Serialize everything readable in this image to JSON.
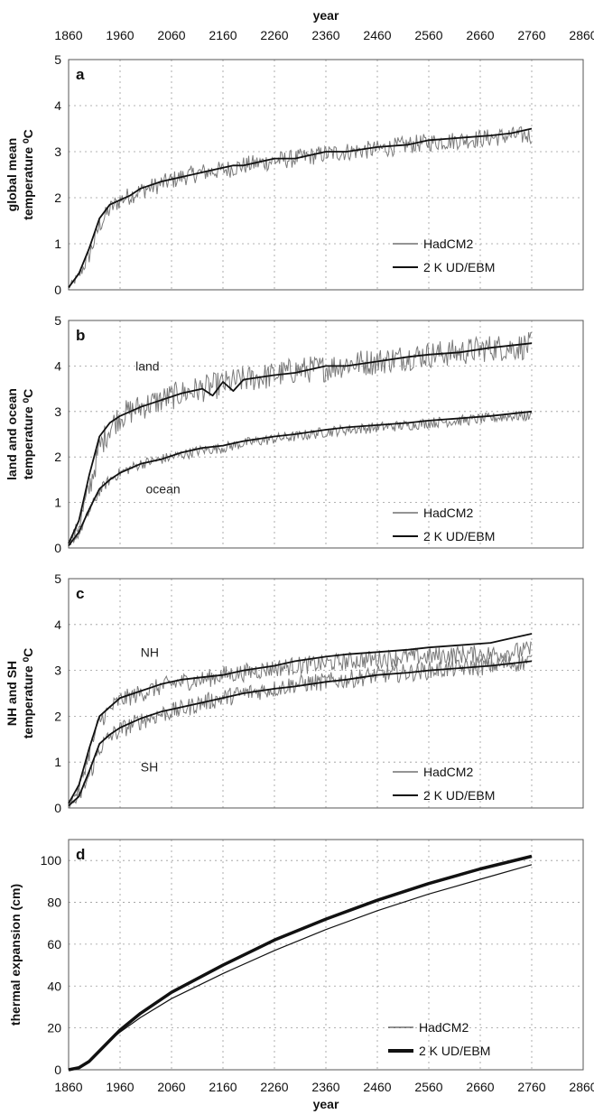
{
  "figure": {
    "top_axis_title": "year",
    "bottom_axis_title": "year"
  },
  "chart_data": [
    {
      "type": "line",
      "panel": "a",
      "xlabel": "year",
      "ylabel": [
        "global mean",
        "temperature ⁰C"
      ],
      "xlim": [
        1860,
        2860
      ],
      "ylim": [
        0,
        5
      ],
      "x_ticks": [
        1860,
        1960,
        2060,
        2160,
        2260,
        2360,
        2460,
        2560,
        2660,
        2760,
        2860
      ],
      "y_ticks": [
        0,
        1,
        2,
        3,
        4,
        5
      ],
      "grid": true,
      "legend_position": "bottom-right",
      "legend": [
        "HadCM2",
        "2 K UD/EBM"
      ],
      "annotations": [],
      "series": [
        {
          "name": "HadCM2",
          "noisy": true,
          "noise": 0.2,
          "x": [
            1860,
            1880,
            1900,
            1920,
            1940,
            1960,
            1980,
            2000,
            2040,
            2080,
            2120,
            2160,
            2200,
            2260,
            2300,
            2360,
            2400,
            2460,
            2520,
            2560,
            2620,
            2680,
            2720,
            2760
          ],
          "y": [
            0.05,
            0.3,
            0.75,
            1.4,
            1.75,
            1.95,
            2.05,
            2.15,
            2.3,
            2.45,
            2.55,
            2.6,
            2.7,
            2.8,
            2.85,
            2.95,
            3.0,
            3.05,
            3.15,
            3.2,
            3.25,
            3.3,
            3.35,
            3.35
          ]
        },
        {
          "name": "2 K UD/EBM",
          "noisy": false,
          "x": [
            1860,
            1880,
            1900,
            1920,
            1940,
            1960,
            1980,
            2000,
            2040,
            2080,
            2120,
            2160,
            2180,
            2200,
            2260,
            2300,
            2360,
            2400,
            2460,
            2520,
            2560,
            2620,
            2680,
            2720,
            2760
          ],
          "y": [
            0.05,
            0.35,
            0.9,
            1.55,
            1.85,
            1.95,
            2.05,
            2.2,
            2.35,
            2.45,
            2.55,
            2.65,
            2.7,
            2.7,
            2.85,
            2.85,
            3.0,
            3.0,
            3.1,
            3.15,
            3.25,
            3.3,
            3.35,
            3.4,
            3.5
          ]
        }
      ]
    },
    {
      "type": "line",
      "panel": "b",
      "xlabel": "year",
      "ylabel": [
        "land and ocean",
        "temperature ⁰C"
      ],
      "xlim": [
        1860,
        2860
      ],
      "ylim": [
        0,
        5
      ],
      "x_ticks": [
        1860,
        1960,
        2060,
        2160,
        2260,
        2360,
        2460,
        2560,
        2660,
        2760,
        2860
      ],
      "y_ticks": [
        0,
        1,
        2,
        3,
        4,
        5
      ],
      "grid": true,
      "legend_position": "bottom-right",
      "legend": [
        "HadCM2",
        "2 K UD/EBM"
      ],
      "annotations": [
        "land",
        "ocean"
      ],
      "series": [
        {
          "name": "HadCM2",
          "group": "land",
          "noisy": true,
          "noise": 0.3,
          "x": [
            1860,
            1880,
            1900,
            1920,
            1940,
            1960,
            2000,
            2040,
            2080,
            2120,
            2160,
            2200,
            2260,
            2300,
            2360,
            2400,
            2460,
            2520,
            2560,
            2620,
            2680,
            2720,
            2760
          ],
          "y": [
            0.1,
            0.5,
            1.3,
            2.2,
            2.65,
            2.9,
            3.1,
            3.25,
            3.4,
            3.5,
            3.6,
            3.7,
            3.8,
            3.9,
            3.95,
            4.05,
            4.1,
            4.2,
            4.25,
            4.3,
            4.4,
            4.4,
            4.45
          ]
        },
        {
          "name": "2 K UD/EBM",
          "group": "land",
          "noisy": false,
          "x": [
            1860,
            1880,
            1900,
            1920,
            1940,
            1960,
            2000,
            2040,
            2080,
            2120,
            2140,
            2160,
            2180,
            2200,
            2260,
            2300,
            2360,
            2400,
            2460,
            2520,
            2560,
            2620,
            2680,
            2720,
            2760
          ],
          "y": [
            0.1,
            0.6,
            1.6,
            2.45,
            2.75,
            2.9,
            3.1,
            3.25,
            3.4,
            3.5,
            3.35,
            3.65,
            3.45,
            3.7,
            3.8,
            3.85,
            4.0,
            4.0,
            4.1,
            4.2,
            4.25,
            4.3,
            4.4,
            4.45,
            4.5
          ]
        },
        {
          "name": "HadCM2",
          "group": "ocean",
          "noisy": true,
          "noise": 0.12,
          "x": [
            1860,
            1880,
            1900,
            1920,
            1940,
            1960,
            2000,
            2040,
            2080,
            2120,
            2160,
            2200,
            2260,
            2300,
            2360,
            2400,
            2460,
            2520,
            2560,
            2620,
            2680,
            2720,
            2760
          ],
          "y": [
            0.05,
            0.3,
            0.8,
            1.25,
            1.5,
            1.65,
            1.85,
            1.95,
            2.05,
            2.15,
            2.2,
            2.3,
            2.4,
            2.45,
            2.55,
            2.6,
            2.65,
            2.7,
            2.75,
            2.8,
            2.85,
            2.9,
            2.9
          ]
        },
        {
          "name": "2 K UD/EBM",
          "group": "ocean",
          "noisy": false,
          "x": [
            1860,
            1880,
            1900,
            1920,
            1940,
            1960,
            2000,
            2040,
            2080,
            2120,
            2160,
            2200,
            2260,
            2300,
            2360,
            2400,
            2460,
            2520,
            2560,
            2620,
            2680,
            2720,
            2760
          ],
          "y": [
            0.05,
            0.35,
            0.85,
            1.3,
            1.5,
            1.65,
            1.85,
            1.95,
            2.1,
            2.2,
            2.25,
            2.35,
            2.45,
            2.5,
            2.6,
            2.65,
            2.7,
            2.75,
            2.8,
            2.85,
            2.9,
            2.95,
            3.0
          ]
        }
      ]
    },
    {
      "type": "line",
      "panel": "c",
      "xlabel": "year",
      "ylabel": [
        "NH and SH",
        "temperature ⁰C"
      ],
      "xlim": [
        1860,
        2860
      ],
      "ylim": [
        0,
        5
      ],
      "x_ticks": [
        1860,
        1960,
        2060,
        2160,
        2260,
        2360,
        2460,
        2560,
        2660,
        2760,
        2860
      ],
      "y_ticks": [
        0,
        1,
        2,
        3,
        4,
        5
      ],
      "grid": true,
      "legend_position": "bottom-right",
      "legend": [
        "HadCM2",
        "2 K UD/EBM"
      ],
      "annotations": [
        "NH",
        "SH"
      ],
      "series": [
        {
          "name": "HadCM2",
          "group": "NH",
          "noisy": true,
          "noise": 0.2,
          "x": [
            1860,
            1880,
            1900,
            1920,
            1940,
            1960,
            2000,
            2040,
            2080,
            2120,
            2160,
            2200,
            2260,
            2300,
            2360,
            2400,
            2460,
            2520,
            2560,
            2620,
            2680,
            2720,
            2760
          ],
          "y": [
            0.1,
            0.4,
            1.2,
            1.9,
            2.15,
            2.35,
            2.5,
            2.65,
            2.75,
            2.8,
            2.9,
            2.95,
            3.05,
            3.1,
            3.15,
            3.2,
            3.25,
            3.3,
            3.3,
            3.35,
            3.35,
            3.4,
            3.45
          ]
        },
        {
          "name": "2 K UD/EBM",
          "group": "NH",
          "noisy": false,
          "x": [
            1860,
            1880,
            1900,
            1920,
            1940,
            1960,
            2000,
            2040,
            2080,
            2120,
            2160,
            2200,
            2260,
            2300,
            2360,
            2400,
            2460,
            2520,
            2560,
            2620,
            2680,
            2720,
            2760
          ],
          "y": [
            0.1,
            0.5,
            1.3,
            2.0,
            2.2,
            2.4,
            2.55,
            2.7,
            2.8,
            2.85,
            2.9,
            3.0,
            3.1,
            3.2,
            3.3,
            3.35,
            3.4,
            3.45,
            3.5,
            3.55,
            3.6,
            3.7,
            3.8
          ]
        },
        {
          "name": "HadCM2",
          "group": "SH",
          "noisy": true,
          "noise": 0.2,
          "x": [
            1860,
            1880,
            1900,
            1920,
            1940,
            1960,
            2000,
            2040,
            2080,
            2120,
            2160,
            2200,
            2260,
            2300,
            2360,
            2400,
            2460,
            2520,
            2560,
            2620,
            2680,
            2720,
            2760
          ],
          "y": [
            0.05,
            0.2,
            0.7,
            1.3,
            1.55,
            1.7,
            1.9,
            2.05,
            2.15,
            2.3,
            2.4,
            2.5,
            2.6,
            2.7,
            2.75,
            2.8,
            2.9,
            2.95,
            3.0,
            3.05,
            3.1,
            3.15,
            3.2
          ]
        },
        {
          "name": "2 K UD/EBM",
          "group": "SH",
          "noisy": false,
          "x": [
            1860,
            1880,
            1900,
            1920,
            1940,
            1960,
            2000,
            2040,
            2080,
            2120,
            2160,
            2200,
            2260,
            2300,
            2360,
            2400,
            2460,
            2520,
            2560,
            2620,
            2680,
            2720,
            2760
          ],
          "y": [
            0.05,
            0.25,
            0.8,
            1.4,
            1.6,
            1.75,
            1.95,
            2.1,
            2.2,
            2.3,
            2.4,
            2.5,
            2.6,
            2.65,
            2.75,
            2.8,
            2.9,
            2.95,
            3.0,
            3.05,
            3.1,
            3.15,
            3.2
          ]
        }
      ]
    },
    {
      "type": "line",
      "panel": "d",
      "xlabel": "year",
      "ylabel": [
        "thermal expansion (cm)"
      ],
      "xlim": [
        1860,
        2860
      ],
      "ylim": [
        0,
        110
      ],
      "x_ticks": [
        1860,
        1960,
        2060,
        2160,
        2260,
        2360,
        2460,
        2560,
        2660,
        2760,
        2860
      ],
      "y_ticks": [
        0,
        20,
        40,
        60,
        80,
        100
      ],
      "grid": true,
      "legend_position": "bottom-right",
      "legend": [
        "HadCM2",
        "2 K UD/EBM"
      ],
      "annotations": [],
      "series": [
        {
          "name": "HadCM2",
          "noisy": false,
          "stroke_width": 1.2,
          "x": [
            1860,
            1880,
            1900,
            1920,
            1940,
            1960,
            2000,
            2060,
            2160,
            2260,
            2360,
            2460,
            2560,
            2660,
            2760
          ],
          "y": [
            0,
            1,
            4,
            9,
            14,
            18,
            25,
            34,
            46,
            57,
            67,
            76,
            84,
            91,
            98
          ]
        },
        {
          "name": "2 K UD/EBM",
          "noisy": false,
          "stroke_width": 3.5,
          "x": [
            1860,
            1880,
            1900,
            1920,
            1940,
            1960,
            2000,
            2060,
            2160,
            2260,
            2360,
            2460,
            2560,
            2660,
            2760
          ],
          "y": [
            0,
            1,
            4,
            9,
            14,
            19,
            27,
            37,
            50,
            62,
            72,
            81,
            89,
            96,
            102
          ]
        }
      ]
    }
  ]
}
